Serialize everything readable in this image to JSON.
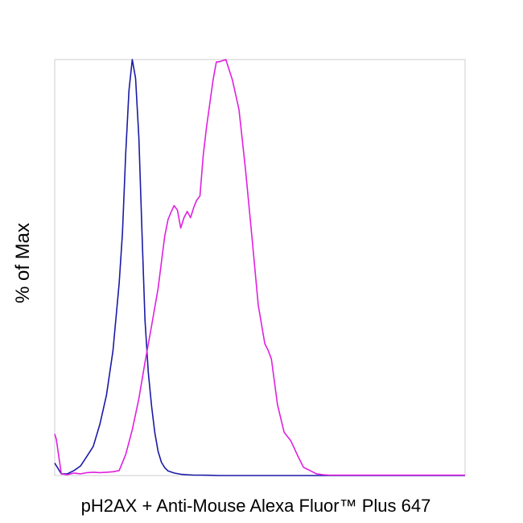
{
  "chart_data": {
    "type": "line",
    "title": "",
    "xlabel": "pH2AX + Anti-Mouse Alexa Fluor™ Plus 647",
    "ylabel": "% of Max",
    "xlim": [
      0,
      100
    ],
    "ylim": [
      0,
      100
    ],
    "grid": false,
    "legend": "none",
    "series": [
      {
        "color": "#1a1aa6",
        "x": [
          0,
          1.6,
          3.1,
          4.7,
          6.3,
          7.9,
          9.4,
          11.0,
          12.6,
          14.2,
          15.7,
          16.5,
          17.3,
          18.1,
          18.9,
          19.7,
          20.5,
          21.3,
          22.0,
          22.8,
          23.6,
          24.4,
          25.2,
          26.0,
          26.8,
          27.6,
          29.1,
          30.7,
          32.3,
          33.9,
          35.4,
          37.8,
          40.2,
          50,
          60,
          70,
          80,
          90,
          100
        ],
        "y": [
          3,
          0.4,
          0.4,
          1.2,
          2.3,
          4.7,
          7.0,
          12.3,
          19.3,
          30.0,
          46.2,
          58.3,
          77.3,
          92.6,
          100,
          95.5,
          81.2,
          57.7,
          37.4,
          24.8,
          16.7,
          10.3,
          5.8,
          3.2,
          1.9,
          1.1,
          0.6,
          0.3,
          0.2,
          0.1,
          0.1,
          0.05,
          0,
          0,
          0,
          0,
          0,
          0,
          0
        ]
      },
      {
        "color": "#e020e0",
        "x": [
          0,
          0.4,
          1.6,
          3.1,
          4.7,
          6.3,
          7.9,
          9.4,
          11.0,
          12.6,
          14.2,
          15.7,
          17.3,
          18.9,
          20.5,
          22.0,
          23.6,
          25.2,
          26.8,
          27.6,
          28.3,
          29.1,
          29.9,
          30.7,
          31.5,
          32.3,
          33.1,
          33.9,
          34.6,
          35.4,
          36.2,
          37.0,
          37.8,
          38.6,
          39.4,
          40.2,
          41.7,
          43.3,
          44.9,
          46.5,
          48.0,
          49.6,
          51.2,
          52.0,
          52.8,
          54.3,
          55.9,
          57.5,
          59.1,
          60.6,
          62.2,
          63.8,
          65.4,
          66.9,
          68.5,
          70.1,
          71.7,
          75,
          80,
          85,
          90,
          95,
          100
        ],
        "y": [
          10,
          8.7,
          0.4,
          0.2,
          0.6,
          0.4,
          0.7,
          0.8,
          0.7,
          0.8,
          0.9,
          1.2,
          5.0,
          11.0,
          18.5,
          27.2,
          36.0,
          45.0,
          57.5,
          61.5,
          63.2,
          64.9,
          63.8,
          59.5,
          62.0,
          63.5,
          62.0,
          64.5,
          66.2,
          67.2,
          77.0,
          83.8,
          89.5,
          95.2,
          99.4,
          99.5,
          100,
          95.1,
          88.0,
          73.6,
          58.0,
          40.9,
          31.7,
          30.1,
          28.0,
          17.0,
          10.4,
          8.4,
          5.0,
          2.0,
          1.2,
          0.4,
          0.2,
          0.1,
          0.1,
          0.1,
          0.1,
          0.1,
          0.1,
          0.1,
          0.1,
          0.1,
          0.1
        ]
      }
    ]
  }
}
